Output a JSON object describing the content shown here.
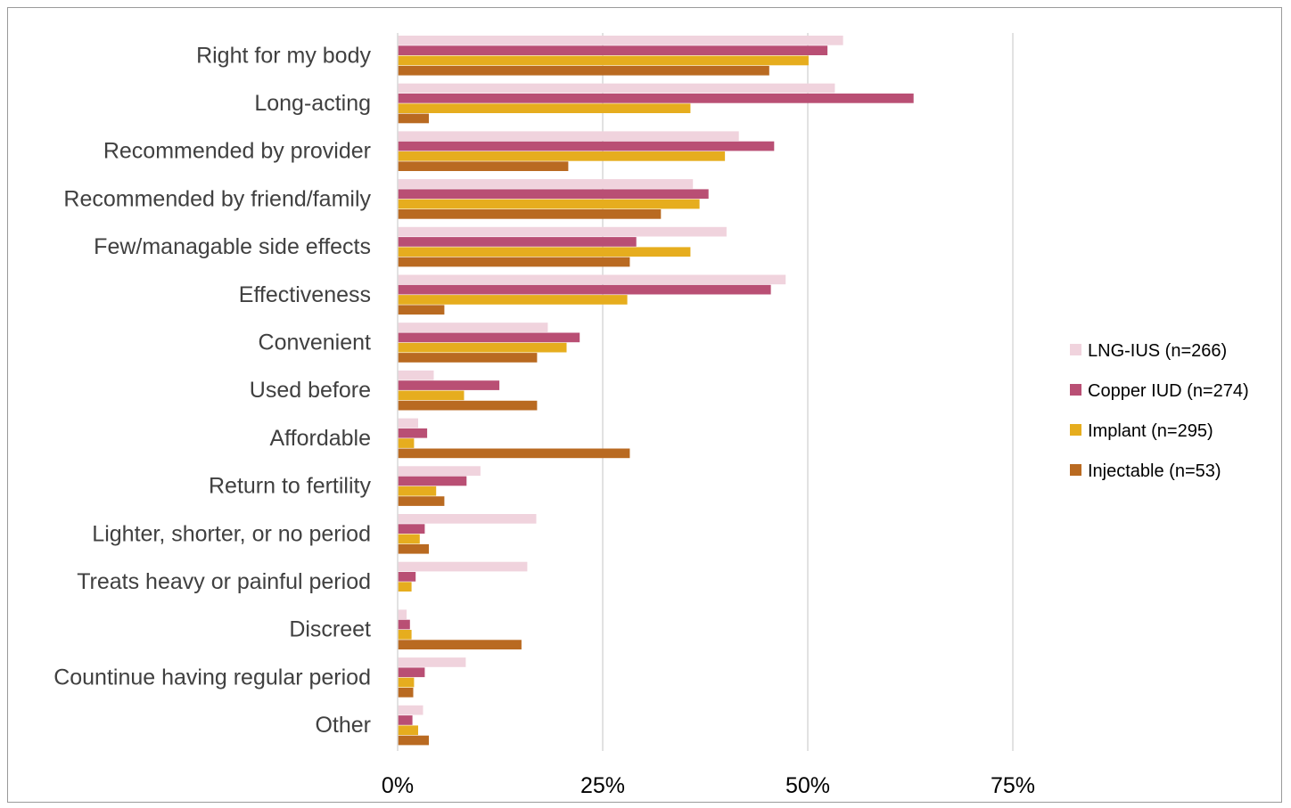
{
  "chart_data": {
    "type": "bar",
    "orientation": "horizontal",
    "title": "",
    "xlabel": "",
    "ylabel": "",
    "xlim": [
      0,
      100
    ],
    "x_ticks": [
      {
        "value": 0,
        "label": "0%"
      },
      {
        "value": 25,
        "label": "25%"
      },
      {
        "value": 50,
        "label": "50%"
      },
      {
        "value": 75,
        "label": "75%"
      }
    ],
    "grid": "vertical",
    "legend_position": "right",
    "categories": [
      "Right for my body",
      "Long-acting",
      "Recommended by provider",
      "Recommended by friend/family",
      "Few/managable side effects",
      "Effectiveness",
      "Convenient",
      "Used before",
      "Affordable",
      "Return to fertility",
      "Lighter, shorter, or no period",
      "Treats heavy or painful period",
      "Discreet",
      "Countinue having regular period",
      "Other"
    ],
    "series": [
      {
        "name": "LNG-IUS (n=266)",
        "color": "#f0d3dd",
        "values": [
          54.3,
          53.3,
          41.6,
          36.0,
          40.1,
          47.3,
          18.3,
          4.4,
          2.5,
          10.1,
          16.9,
          15.8,
          1.1,
          8.3,
          3.1
        ]
      },
      {
        "name": "Copper IUD (n=274)",
        "color": "#b94f74",
        "values": [
          52.4,
          62.9,
          45.9,
          37.9,
          29.1,
          45.5,
          22.2,
          12.4,
          3.6,
          8.4,
          3.3,
          2.2,
          1.5,
          3.3,
          1.8
        ]
      },
      {
        "name": "Implant (n=295)",
        "color": "#e6ad1e",
        "values": [
          50.1,
          35.7,
          39.9,
          36.8,
          35.7,
          28.0,
          20.6,
          8.1,
          2.0,
          4.7,
          2.7,
          1.7,
          1.7,
          2.0,
          2.5
        ]
      },
      {
        "name": "Injectable (n=53)",
        "color": "#b96a21",
        "values": [
          45.3,
          3.8,
          20.8,
          32.1,
          28.3,
          5.7,
          17.0,
          17.0,
          28.3,
          5.7,
          3.8,
          0,
          15.1,
          1.9,
          3.8
        ]
      }
    ]
  }
}
